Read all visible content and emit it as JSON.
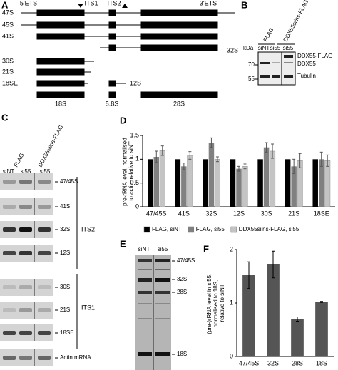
{
  "panel_labels": [
    "A",
    "B",
    "C",
    "D",
    "E",
    "F"
  ],
  "panel_a": {
    "regions": [
      "5'ETS",
      "ITS1",
      "ITS2",
      "3'ETS"
    ],
    "precursors": [
      "47S",
      "45S",
      "41S",
      "32S",
      "30S",
      "21S",
      "18SE",
      "12S"
    ],
    "mature": [
      "18S",
      "5.8S",
      "28S"
    ]
  },
  "panel_b": {
    "constructs": [
      "FLAG",
      "DDX55siins-FLAG"
    ],
    "lanes": [
      "siNT",
      "si55",
      "si55"
    ],
    "kda_label": "kDa",
    "markers": [
      "70",
      "55"
    ],
    "bands": [
      "DDX55-FLAG",
      "DDX55",
      "Tubulin"
    ]
  },
  "panel_c": {
    "constructs": [
      "FLAG",
      "DDX55siins-FLAG"
    ],
    "lanes": [
      "siNT",
      "si55",
      "si55"
    ],
    "bands": [
      "47/45S",
      "41S",
      "32S",
      "12S",
      "30S",
      "21S",
      "18SE",
      "Actin mRNA"
    ],
    "groups": [
      "ITS2",
      "ITS1"
    ]
  },
  "panel_e": {
    "lanes": [
      "siNT",
      "si55"
    ],
    "bands": [
      "47/45S",
      "32S",
      "28S",
      "18S"
    ]
  },
  "chart_data": [
    {
      "type": "bar",
      "y_label": "pre-rRNA level, normalised to actin, relative to siNT",
      "categories": [
        "47/45S",
        "41S",
        "32S",
        "12S",
        "30S",
        "21S",
        "18SE"
      ],
      "series": [
        {
          "name": "FLAG, siNT",
          "color": "#000000",
          "values": [
            1,
            1,
            1,
            1,
            1,
            1,
            1
          ]
        },
        {
          "name": "FLAG, si55",
          "color": "#808080",
          "values": [
            1.05,
            0.85,
            1.35,
            0.8,
            1.25,
            0.85,
            1.0
          ],
          "errors": [
            0.12,
            0.07,
            0.1,
            0.05,
            0.1,
            0.15,
            0.15
          ]
        },
        {
          "name": "DDX55siins-FLAG, si55",
          "color": "#c4c4c4",
          "values": [
            1.18,
            1.08,
            1.0,
            0.85,
            1.17,
            0.97,
            0.97
          ],
          "errors": [
            0.1,
            0.08,
            0.05,
            0.05,
            0.15,
            0.15,
            0.12
          ]
        }
      ],
      "ylim": [
        0,
        1.5
      ],
      "yticks": [
        0,
        0.5,
        1,
        1.5
      ],
      "grid": false,
      "legend": "bottom"
    },
    {
      "type": "bar",
      "y_label": "(pre-)rRNA level in si55, normalised to 18S, relative to siNT",
      "categories": [
        "47/45S",
        "32S",
        "28S",
        "18S"
      ],
      "color": "#555555",
      "values": [
        1.52,
        1.72,
        0.7,
        1.02
      ],
      "errors": [
        0.25,
        0.25,
        0.04,
        0.01
      ],
      "ylim": [
        0,
        2
      ],
      "yticks": [
        0,
        1,
        2
      ],
      "grid": false
    }
  ]
}
